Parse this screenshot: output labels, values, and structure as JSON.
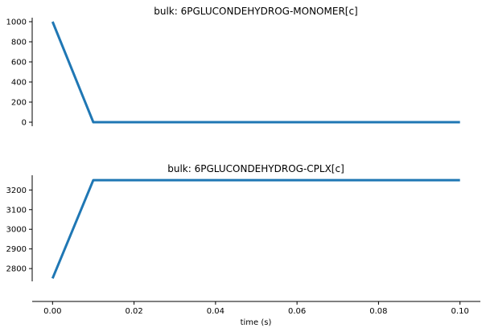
{
  "chart_data": [
    {
      "type": "line",
      "title": "bulk: 6PGLUCONDEHYDROG-MONOMER[c]",
      "xlabel": "",
      "ylabel": "",
      "x": [
        0.0,
        0.01,
        0.1
      ],
      "series": [
        {
          "values": [
            1000,
            0,
            0
          ],
          "color": "#1f77b4"
        }
      ],
      "xlim": [
        -0.005,
        0.105
      ],
      "ylim": [
        -40,
        1040
      ],
      "yticks": [
        0,
        200,
        400,
        600,
        800,
        1000
      ],
      "ytick_labels": [
        "0",
        "200",
        "400",
        "600",
        "800",
        "1000"
      ],
      "grid": false
    },
    {
      "type": "line",
      "title": "bulk: 6PGLUCONDEHYDROG-CPLX[c]",
      "xlabel": "time (s)",
      "ylabel": "",
      "x": [
        0.0,
        0.01,
        0.1
      ],
      "series": [
        {
          "values": [
            2750,
            3250,
            3250
          ],
          "color": "#1f77b4"
        }
      ],
      "xlim": [
        -0.005,
        0.105
      ],
      "ylim": [
        2735,
        3275
      ],
      "yticks": [
        2800,
        2900,
        3000,
        3100,
        3200
      ],
      "ytick_labels": [
        "2800",
        "2900",
        "3000",
        "3100",
        "3200"
      ],
      "xticks": [
        0.0,
        0.02,
        0.04,
        0.06,
        0.08,
        0.1
      ],
      "xtick_labels": [
        "0.00",
        "0.02",
        "0.04",
        "0.06",
        "0.08",
        "0.10"
      ],
      "grid": false
    }
  ]
}
